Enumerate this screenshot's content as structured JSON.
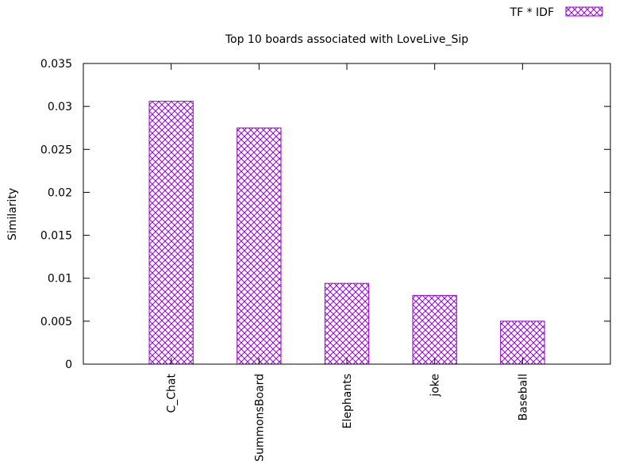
{
  "chart_data": {
    "type": "bar",
    "title": "Top 10 boards associated with LoveLive_Sip",
    "xlabel": "",
    "ylabel": "Similarity",
    "categories": [
      "C_Chat",
      "SummonsBoard",
      "Elephants",
      "joke",
      "Baseball"
    ],
    "series": [
      {
        "name": "TF * IDF",
        "values": [
          0.0306,
          0.0275,
          0.0094,
          0.008,
          0.005
        ]
      }
    ],
    "ylim": [
      0,
      0.035
    ],
    "yticks": [
      "0",
      "0.005",
      "0.01",
      "0.015",
      "0.02",
      "0.025",
      "0.03",
      "0.035"
    ],
    "grid": false,
    "legend": "top-right",
    "bar_color": "#9400d3",
    "bar_pattern": "crosshatch"
  }
}
